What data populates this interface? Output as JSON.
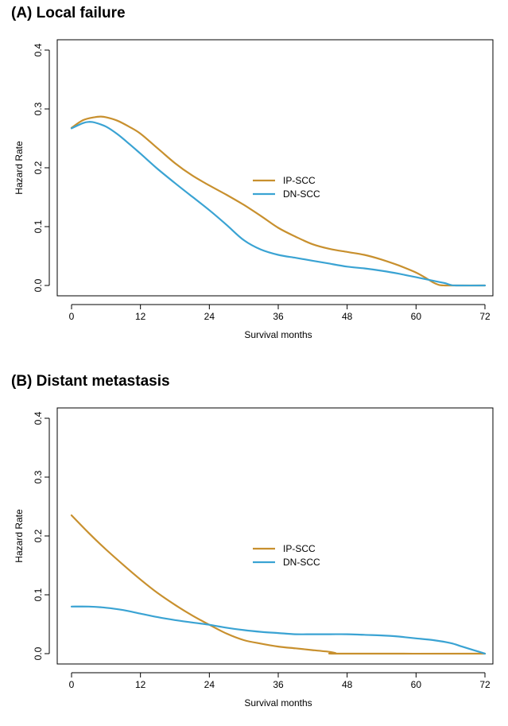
{
  "colors": {
    "ip_scc": "#C8902E",
    "dn_scc": "#3AA3D3",
    "axis": "#000000"
  },
  "chart_data": [
    {
      "type": "line",
      "panel_title": "(A) Local failure",
      "xlabel": "Survival months",
      "ylabel": "Hazard Rate",
      "xlim": [
        0,
        72
      ],
      "ylim": [
        0,
        0.4
      ],
      "xticks": [
        "0",
        "12",
        "24",
        "36",
        "48",
        "60",
        "72"
      ],
      "yticks": [
        "0.0",
        "0.1",
        "0.2",
        "0.3",
        "0.4"
      ],
      "legend_position": "center",
      "series": [
        {
          "name": "IP-SCC",
          "color_key": "ip_scc",
          "x": [
            0,
            2,
            4,
            5,
            6,
            8,
            10,
            12,
            15,
            18,
            21,
            24,
            27,
            30,
            33,
            36,
            39,
            42,
            45,
            48,
            51,
            54,
            57,
            60,
            62,
            63,
            64,
            65,
            66,
            67,
            72
          ],
          "y": [
            0.268,
            0.281,
            0.286,
            0.287,
            0.286,
            0.28,
            0.27,
            0.258,
            0.233,
            0.208,
            0.187,
            0.17,
            0.154,
            0.137,
            0.118,
            0.098,
            0.083,
            0.07,
            0.062,
            0.057,
            0.052,
            0.044,
            0.034,
            0.022,
            0.011,
            0.005,
            0.001,
            0.0,
            0.0,
            0.0,
            0.0
          ]
        },
        {
          "name": "DN-SCC",
          "color_key": "dn_scc",
          "x": [
            0,
            2,
            3,
            4,
            6,
            8,
            10,
            12,
            15,
            18,
            21,
            24,
            27,
            30,
            33,
            36,
            39,
            42,
            45,
            48,
            51,
            54,
            57,
            60,
            63,
            65,
            66,
            67,
            72
          ],
          "y": [
            0.267,
            0.276,
            0.278,
            0.277,
            0.27,
            0.257,
            0.241,
            0.224,
            0.198,
            0.174,
            0.151,
            0.128,
            0.103,
            0.077,
            0.061,
            0.052,
            0.047,
            0.042,
            0.037,
            0.032,
            0.029,
            0.025,
            0.02,
            0.014,
            0.008,
            0.004,
            0.001,
            0.0,
            0.0
          ]
        }
      ]
    },
    {
      "type": "line",
      "panel_title": "(B) Distant metastasis",
      "xlabel": "Survival months",
      "ylabel": "Hazard Rate",
      "xlim": [
        0,
        72
      ],
      "ylim": [
        0,
        0.4
      ],
      "xticks": [
        "0",
        "12",
        "24",
        "36",
        "48",
        "60",
        "72"
      ],
      "yticks": [
        "0.0",
        "0.1",
        "0.2",
        "0.3",
        "0.4"
      ],
      "legend_position": "center",
      "series": [
        {
          "name": "IP-SCC",
          "color_key": "ip_scc",
          "x": [
            0,
            3,
            6,
            9,
            12,
            15,
            18,
            21,
            24,
            27,
            30,
            33,
            36,
            39,
            42,
            45,
            46,
            47,
            72
          ],
          "y": [
            0.235,
            0.205,
            0.177,
            0.151,
            0.126,
            0.103,
            0.083,
            0.065,
            0.049,
            0.034,
            0.023,
            0.017,
            0.012,
            0.009,
            0.006,
            0.003,
            0.001,
            0.0,
            0.0
          ]
        },
        {
          "name": "DN-SCC",
          "color_key": "dn_scc",
          "x": [
            0,
            3,
            6,
            9,
            12,
            15,
            18,
            21,
            24,
            27,
            30,
            33,
            36,
            39,
            42,
            45,
            48,
            51,
            54,
            57,
            60,
            63,
            66,
            68,
            70,
            72
          ],
          "y": [
            0.08,
            0.08,
            0.078,
            0.074,
            0.068,
            0.062,
            0.057,
            0.053,
            0.049,
            0.044,
            0.04,
            0.037,
            0.035,
            0.033,
            0.033,
            0.033,
            0.033,
            0.032,
            0.031,
            0.029,
            0.026,
            0.023,
            0.018,
            0.012,
            0.006,
            0.0
          ]
        }
      ]
    }
  ]
}
